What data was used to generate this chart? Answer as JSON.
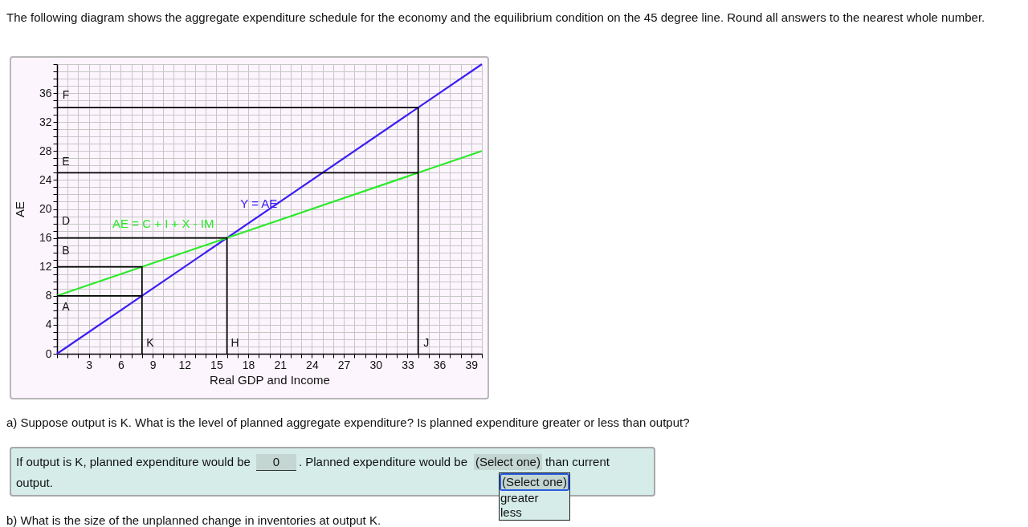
{
  "chart_data": {
    "type": "line",
    "title": "The following diagram shows the aggregate expenditure schedule for the economy and the equilibrium condition on the 45 degree line. Round all answers to the nearest whole number.",
    "xlabel": "Real GDP and Income",
    "ylabel": "AE",
    "xlim": [
      0,
      40
    ],
    "ylim": [
      0,
      40
    ],
    "xticks": [
      {
        "value": 0,
        "label": null
      },
      {
        "value": 1,
        "label": null
      },
      {
        "value": 2,
        "label": null
      },
      3,
      {
        "value": 4,
        "label": null
      },
      {
        "value": 5,
        "label": null
      },
      6,
      {
        "value": 7,
        "label": null
      },
      {
        "value": 8,
        "label": null
      },
      9,
      {
        "value": 10,
        "label": null
      },
      {
        "value": 11,
        "label": null
      },
      12,
      {
        "value": 13,
        "label": null
      },
      {
        "value": 14,
        "label": null
      },
      15,
      {
        "value": 16,
        "label": null
      },
      {
        "value": 17,
        "label": null
      },
      18,
      {
        "value": 19,
        "label": null
      },
      {
        "value": 20,
        "label": null
      },
      21,
      {
        "value": 22,
        "label": null
      },
      {
        "value": 23,
        "label": null
      },
      24,
      {
        "value": 25,
        "label": null
      },
      {
        "value": 26,
        "label": null
      },
      27,
      {
        "value": 28,
        "label": null
      },
      {
        "value": 29,
        "label": null
      },
      30,
      {
        "value": 31,
        "label": null
      },
      {
        "value": 32,
        "label": null
      },
      33,
      {
        "value": 34,
        "label": null
      },
      {
        "value": 35,
        "label": null
      },
      36,
      {
        "value": 37,
        "label": null
      },
      {
        "value": 38,
        "label": null
      },
      39,
      {
        "value": 40,
        "label": null
      }
    ],
    "yticks": [
      0,
      {
        "value": 1,
        "label": null
      },
      {
        "value": 2,
        "label": null
      },
      {
        "value": 3,
        "label": null
      },
      4,
      {
        "value": 5,
        "label": null
      },
      {
        "value": 6,
        "label": null
      },
      {
        "value": 7,
        "label": null
      },
      8,
      {
        "value": 9,
        "label": null
      },
      {
        "value": 10,
        "label": null
      },
      {
        "value": 11,
        "label": null
      },
      12,
      {
        "value": 13,
        "label": null
      },
      {
        "value": 14,
        "label": null
      },
      {
        "value": 15,
        "label": null
      },
      16,
      {
        "value": 17,
        "label": null
      },
      {
        "value": 18,
        "label": null
      },
      {
        "value": 19,
        "label": null
      },
      20,
      {
        "value": 21,
        "label": null
      },
      {
        "value": 22,
        "label": null
      },
      {
        "value": 23,
        "label": null
      },
      24,
      {
        "value": 25,
        "label": null
      },
      {
        "value": 26,
        "label": null
      },
      {
        "value": 27,
        "label": null
      },
      28,
      {
        "value": 29,
        "label": null
      },
      {
        "value": 30,
        "label": null
      },
      {
        "value": 31,
        "label": null
      },
      32,
      {
        "value": 33,
        "label": null
      },
      {
        "value": 34,
        "label": null
      },
      {
        "value": 35,
        "label": null
      },
      36,
      {
        "value": 37,
        "label": null
      },
      {
        "value": 38,
        "label": null
      },
      {
        "value": 39,
        "label": null
      },
      {
        "value": 40,
        "label": null
      }
    ],
    "grid": true,
    "series": [
      {
        "name": "Y = AE",
        "color": "#3c1ef2",
        "x": [
          0,
          40
        ],
        "values": [
          0,
          40
        ]
      },
      {
        "name": "AE = C + I + X - IM",
        "color": "#2aea2a",
        "x": [
          0,
          40
        ],
        "values": [
          8,
          28
        ]
      },
      {
        "color": "#000000",
        "x": [
          0,
          8
        ],
        "values": [
          8,
          8
        ]
      },
      {
        "color": "#000000",
        "x": [
          0,
          8,
          8
        ],
        "values": [
          12,
          12,
          0
        ]
      },
      {
        "color": "#000000",
        "x": [
          0,
          16,
          16
        ],
        "values": [
          16,
          16,
          0
        ]
      },
      {
        "color": "#000000",
        "x": [
          0,
          34
        ],
        "values": [
          25,
          25
        ]
      },
      {
        "color": "#000000",
        "x": [
          0,
          34,
          34
        ],
        "values": [
          34,
          34,
          0
        ]
      }
    ],
    "annotations": [
      {
        "text": "F",
        "x": 0,
        "y": 34
      },
      {
        "text": "E",
        "x": 0,
        "y": 25
      },
      {
        "text": "D",
        "x": 0,
        "y": 16
      },
      {
        "text": "B",
        "x": 0,
        "y": 12
      },
      {
        "text": "A",
        "x": 0,
        "y": 8
      },
      {
        "text": "K",
        "x": 8,
        "y": 0
      },
      {
        "text": "H",
        "x": 16,
        "y": 0
      },
      {
        "text": "J",
        "x": 34,
        "y": 0
      },
      "a) Suppose output is K. What is the level of planned aggregate expenditure? Is planned expenditure greater or less than output?",
      "If output is K, planned expenditure would be",
      "0",
      ". Planned expenditure would be",
      "(Select one)",
      "than current output.",
      "(Select one)",
      "greater",
      "less",
      "b) What is the size of the unplanned change in inventories at output K."
    ]
  }
}
